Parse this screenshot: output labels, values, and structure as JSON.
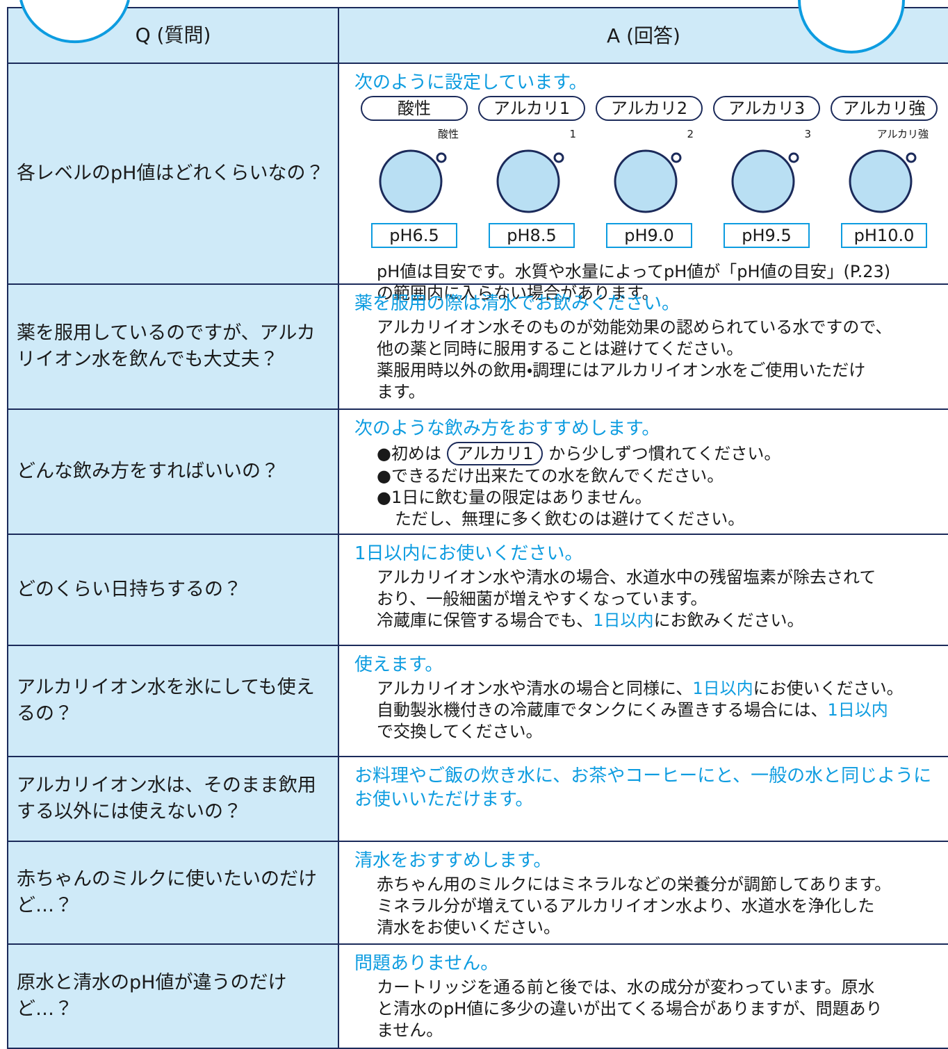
{
  "header": {
    "question": "Q (質問)",
    "answer": "A (回答)"
  },
  "rows": [
    {
      "question": "各レベルのpH値はどれくらいなの？",
      "answer": {
        "heading": "次のように設定しています。",
        "levels": [
          {
            "name": "酸性",
            "label": "酸性",
            "ph": "pH6.5"
          },
          {
            "name": "アルカリ1",
            "label": "1",
            "ph": "pH8.5"
          },
          {
            "name": "アルカリ2",
            "label": "2",
            "ph": "pH9.0"
          },
          {
            "name": "アルカリ3",
            "label": "3",
            "ph": "pH9.5"
          },
          {
            "name": "アルカリ強",
            "label": "アルカリ強",
            "ph": "pH10.0"
          }
        ],
        "lines": [
          {
            "segments": [
              {
                "text": "pH値は目安です。水質や水量によってpH値が「pH値の目安」(P.23)"
              }
            ]
          },
          {
            "segments": [
              {
                "text": "の範囲内に入らない場合があります。"
              }
            ]
          }
        ]
      }
    },
    {
      "question": "薬を服用しているのですが、アルカリイオン水を飲んでも大丈夫？",
      "answer": {
        "heading": "薬を服用の際は清水でお飲みください。",
        "lines": [
          {
            "segments": [
              {
                "text": "アルカリイオン水そのものが効能効果の認められている水ですので、"
              }
            ]
          },
          {
            "segments": [
              {
                "text": "他の薬と同時に服用することは避けてください。"
              }
            ]
          },
          {
            "segments": [
              {
                "text": "薬服用時以外の飲用・調理にはアルカリイオン水をご使用いただけ"
              }
            ]
          },
          {
            "segments": [
              {
                "text": "ます。"
              }
            ]
          }
        ]
      }
    },
    {
      "question": "どんな飲み方をすればいいの？",
      "answer": {
        "heading": "次のような飲み方をおすすめします。",
        "lines": [
          {
            "segments": [
              {
                "text": "●初めは"
              },
              {
                "text": "アルカリ1",
                "pill": true
              },
              {
                "text": "から少しずつ慣れてください。"
              }
            ]
          },
          {
            "segments": [
              {
                "text": "●できるだけ出来たての水を飲んでください。"
              }
            ]
          },
          {
            "segments": [
              {
                "text": "●1日に飲む量の限定はありません。"
              }
            ]
          },
          {
            "indent": true,
            "segments": [
              {
                "text": "ただし、無理に多く飲むのは避けてください。"
              }
            ]
          }
        ]
      }
    },
    {
      "question": "どのくらい日持ちするの？",
      "answer": {
        "heading": "1日以内にお使いください。",
        "lines": [
          {
            "segments": [
              {
                "text": "アルカリイオン水や清水の場合、水道水中の残留塩素が除去されて"
              }
            ]
          },
          {
            "segments": [
              {
                "text": "おり、一般細菌が増えやすくなっています。"
              }
            ]
          },
          {
            "segments": [
              {
                "text": "冷蔵庫に保管する場合でも、"
              },
              {
                "text": "1日以内",
                "em": true
              },
              {
                "text": "にお飲みください。"
              }
            ]
          }
        ]
      }
    },
    {
      "question": "アルカリイオン水を氷にしても使えるの？",
      "answer": {
        "heading": "使えます。",
        "lines": [
          {
            "segments": [
              {
                "text": "アルカリイオン水や清水の場合と同様に、"
              },
              {
                "text": "1日以内",
                "em": true
              },
              {
                "text": "にお使いください。"
              }
            ]
          },
          {
            "segments": [
              {
                "text": "自動製氷機付きの冷蔵庫でタンクにくみ置きする場合には、"
              },
              {
                "text": "1日以内",
                "em": true
              }
            ]
          },
          {
            "segments": [
              {
                "text": "で交換してください。"
              }
            ]
          }
        ]
      }
    },
    {
      "question": "アルカリイオン水は、そのまま飲用する以外には使えないの？",
      "answer": {
        "heading": "お料理やご飯の炊き水に、お茶やコーヒーにと、一般の水と同じようにお使いいただけます。",
        "lines": []
      }
    },
    {
      "question": "赤ちゃんのミルクに使いたいのだけど…？",
      "answer": {
        "heading": "清水をおすすめします。",
        "lines": [
          {
            "segments": [
              {
                "text": "赤ちゃん用のミルクにはミネラルなどの栄養分が調節してあります。"
              }
            ]
          },
          {
            "segments": [
              {
                "text": "ミネラル分が増えているアルカリイオン水より、水道水を浄化した"
              }
            ]
          },
          {
            "segments": [
              {
                "text": "清水をお使いください。"
              }
            ]
          }
        ]
      }
    },
    {
      "question": "原水と清水のpH値が違うのだけど…？",
      "answer": {
        "heading": "問題ありません。",
        "lines": [
          {
            "segments": [
              {
                "text": "カートリッジを通る前と後では、水の成分が変わっています。原水"
              }
            ]
          },
          {
            "segments": [
              {
                "text": "と清水のpH値に多少の違いが出てくる場合がありますが、問題あり"
              }
            ]
          },
          {
            "segments": [
              {
                "text": "ません。"
              }
            ]
          }
        ]
      }
    }
  ]
}
